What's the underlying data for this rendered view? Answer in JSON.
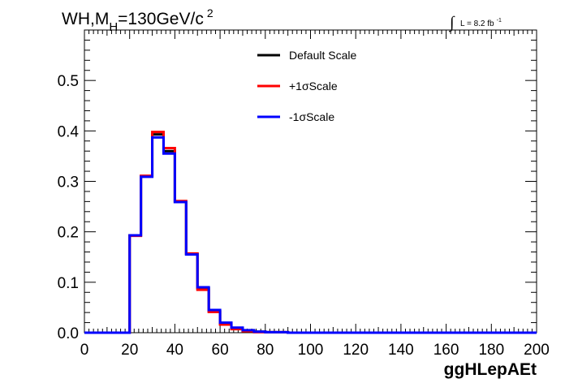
{
  "chart_data": {
    "type": "line",
    "title_main": "WH,M",
    "title_sub": "H",
    "title_rest": "=130GeV/c",
    "title_sup": "2",
    "lumi_text": "L = 8.2 fb",
    "lumi_sup": "-1",
    "lumi_integral": "∫",
    "xlabel": "ggHLepAEt",
    "ylabel": "",
    "xlim": [
      0,
      200
    ],
    "ylim": [
      0,
      0.6
    ],
    "x_ticks": [
      "0",
      "20",
      "40",
      "60",
      "80",
      "100",
      "120",
      "140",
      "160",
      "180",
      "200"
    ],
    "y_ticks": [
      "0.0",
      "0.1",
      "0.2",
      "0.3",
      "0.4",
      "0.5"
    ],
    "bin_edges": [
      0,
      5,
      10,
      15,
      20,
      25,
      30,
      35,
      40,
      45,
      50,
      55,
      60,
      65,
      70,
      75,
      80,
      85,
      90,
      95,
      100,
      105,
      110,
      115,
      120,
      125,
      130,
      135,
      140,
      145,
      150,
      155,
      160,
      165,
      170,
      175,
      180,
      185,
      190,
      195,
      200
    ],
    "legend_position": "top-center",
    "series": [
      {
        "name": "Default Scale",
        "color": "#000000",
        "values": [
          0,
          0,
          0,
          0,
          0.193,
          0.31,
          0.393,
          0.36,
          0.259,
          0.156,
          0.088,
          0.043,
          0.018,
          0.009,
          0.004,
          0.002,
          0.001,
          0.001,
          0,
          0,
          0,
          0,
          0,
          0,
          0,
          0,
          0,
          0,
          0,
          0,
          0,
          0,
          0,
          0,
          0,
          0,
          0,
          0,
          0,
          0
        ]
      },
      {
        "name": "+1σScale",
        "color": "#ff0000",
        "values": [
          0,
          0,
          0,
          0,
          0.192,
          0.311,
          0.398,
          0.366,
          0.261,
          0.157,
          0.085,
          0.041,
          0.016,
          0.007,
          0.003,
          0.001,
          0.001,
          0.001,
          0,
          0,
          0,
          0,
          0,
          0,
          0,
          0,
          0,
          0,
          0,
          0,
          0,
          0,
          0,
          0,
          0,
          0,
          0,
          0,
          0,
          0
        ]
      },
      {
        "name": "-1σScale",
        "color": "#0000ff",
        "values": [
          0,
          0,
          0,
          0,
          0.193,
          0.309,
          0.387,
          0.355,
          0.259,
          0.155,
          0.09,
          0.045,
          0.02,
          0.01,
          0.005,
          0.002,
          0.001,
          0.001,
          0,
          0,
          0,
          0,
          0,
          0,
          0,
          0,
          0,
          0,
          0,
          0,
          0,
          0,
          0,
          0,
          0,
          0,
          0,
          0,
          0,
          0
        ]
      }
    ]
  }
}
